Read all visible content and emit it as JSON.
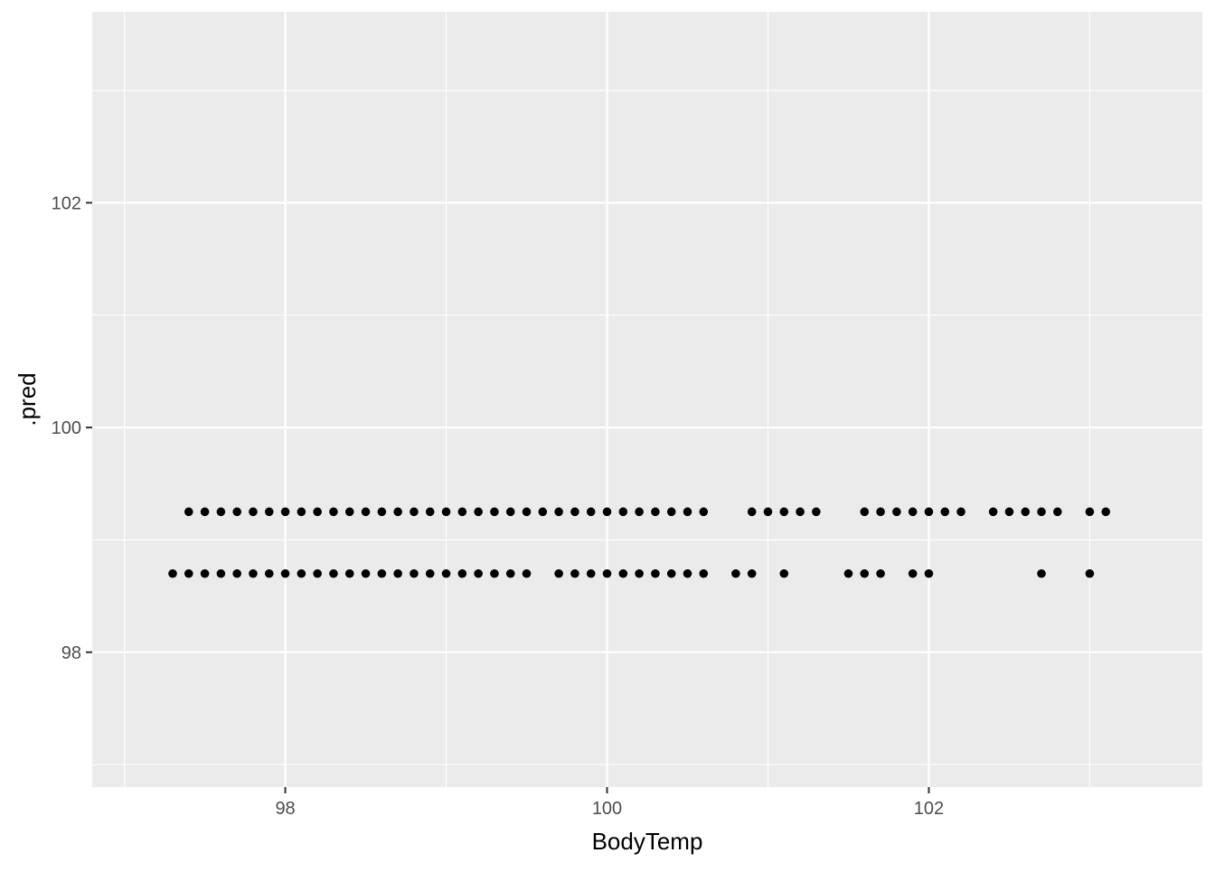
{
  "chart_data": {
    "type": "scatter",
    "title": "",
    "xlabel": "BodyTemp",
    "ylabel": ".pred",
    "xlim": [
      96.8,
      103.7
    ],
    "ylim": [
      96.8,
      103.7
    ],
    "xticks": [
      98,
      100,
      102
    ],
    "yticks": [
      98,
      100,
      102
    ],
    "xtick_labels": [
      "98",
      "100",
      "102"
    ],
    "ytick_labels": [
      "98",
      "100",
      "102"
    ],
    "x_minor_grid": [
      97,
      99,
      101,
      103
    ],
    "y_minor_grid": [
      97,
      99,
      101,
      103
    ],
    "grid": true,
    "panel_background": "#ebebeb",
    "grid_color": "#ffffff",
    "point_color": "#000000",
    "series": [
      {
        "y": 99.25,
        "x": [
          97.4,
          97.5,
          97.6,
          97.7,
          97.8,
          97.9,
          98.0,
          98.1,
          98.2,
          98.3,
          98.4,
          98.5,
          98.6,
          98.7,
          98.8,
          98.9,
          99.0,
          99.1,
          99.2,
          99.3,
          99.4,
          99.5,
          99.6,
          99.7,
          99.8,
          99.9,
          100.0,
          100.1,
          100.2,
          100.3,
          100.4,
          100.5,
          100.6,
          100.9,
          101.0,
          101.1,
          101.2,
          101.3,
          101.6,
          101.7,
          101.8,
          101.9,
          102.0,
          102.1,
          102.2,
          102.4,
          102.5,
          102.6,
          102.7,
          102.8,
          103.0,
          103.1
        ]
      },
      {
        "y": 98.7,
        "x": [
          97.3,
          97.4,
          97.5,
          97.6,
          97.7,
          97.8,
          97.9,
          98.0,
          98.1,
          98.2,
          98.3,
          98.4,
          98.5,
          98.6,
          98.7,
          98.8,
          98.9,
          99.0,
          99.1,
          99.2,
          99.3,
          99.4,
          99.5,
          99.7,
          99.8,
          99.9,
          100.0,
          100.1,
          100.2,
          100.3,
          100.4,
          100.5,
          100.6,
          100.8,
          100.9,
          101.1,
          101.5,
          101.6,
          101.7,
          101.9,
          102.0,
          102.7,
          103.0
        ]
      }
    ]
  }
}
